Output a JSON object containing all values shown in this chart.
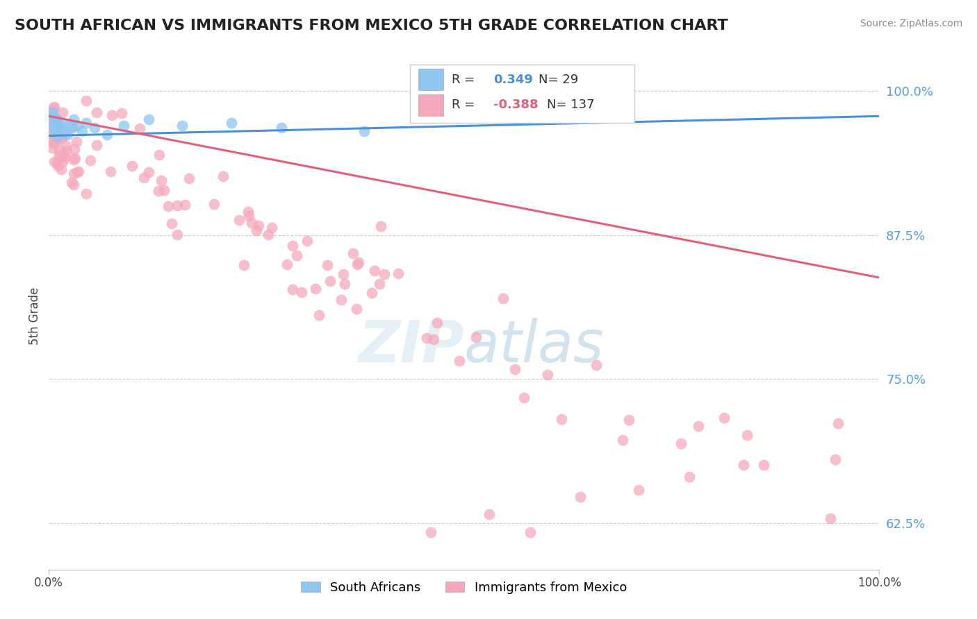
{
  "title": "SOUTH AFRICAN VS IMMIGRANTS FROM MEXICO 5TH GRADE CORRELATION CHART",
  "source": "Source: ZipAtlas.com",
  "ylabel": "5th Grade",
  "xlim": [
    0.0,
    1.0
  ],
  "ylim": [
    0.585,
    1.025
  ],
  "yticks": [
    0.625,
    0.75,
    0.875,
    1.0
  ],
  "ytick_labels": [
    "62.5%",
    "75.0%",
    "87.5%",
    "100.0%"
  ],
  "grid_color": "#cccccc",
  "background_color": "#ffffff",
  "blue_R": 0.349,
  "blue_N": 29,
  "pink_R": -0.388,
  "pink_N": 137,
  "blue_color": "#8ec6f0",
  "pink_color": "#f5a8bb",
  "blue_line_color": "#4a90d9",
  "pink_line_color": "#e0607a",
  "legend_label_blue": "South Africans",
  "legend_label_pink": "Immigrants from Mexico",
  "blue_line_x0": 0.0,
  "blue_line_x1": 1.0,
  "blue_line_y0": 0.961,
  "blue_line_y1": 0.978,
  "pink_line_x0": 0.0,
  "pink_line_x1": 1.0,
  "pink_line_y0": 0.978,
  "pink_line_y1": 0.838
}
